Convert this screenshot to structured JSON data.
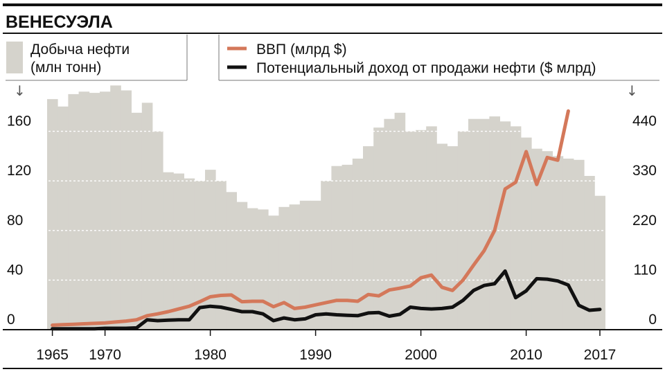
{
  "chart_data": {
    "type": "bar",
    "title": "ВЕНЕСУЭЛА",
    "x": [
      1965,
      1966,
      1967,
      1968,
      1969,
      1970,
      1971,
      1972,
      1973,
      1974,
      1975,
      1976,
      1977,
      1978,
      1979,
      1980,
      1981,
      1982,
      1983,
      1984,
      1985,
      1986,
      1987,
      1988,
      1989,
      1990,
      1991,
      1992,
      1993,
      1994,
      1995,
      1996,
      1997,
      1998,
      1999,
      2000,
      2001,
      2002,
      2003,
      2004,
      2005,
      2006,
      2007,
      2008,
      2009,
      2010,
      2011,
      2012,
      2013,
      2014,
      2015,
      2016,
      2017
    ],
    "x_ticks": [
      {
        "value": 1965,
        "label": "1965"
      },
      {
        "value": 1970,
        "label": "1970"
      },
      {
        "value": 1980,
        "label": "1980"
      },
      {
        "value": 1990,
        "label": "1990"
      },
      {
        "value": 2000,
        "label": "2000"
      },
      {
        "value": 2010,
        "label": "2010"
      },
      {
        "value": 2017,
        "label": "2017"
      }
    ],
    "left_axis": {
      "label": "Добыча нефти\n(млн тонн)",
      "ticks": [
        {
          "value": 0,
          "label": "0"
        },
        {
          "value": 40,
          "label": "40"
        },
        {
          "value": 80,
          "label": "80"
        },
        {
          "value": 120,
          "label": "120"
        },
        {
          "value": 160,
          "label": "160"
        }
      ],
      "ylim": [
        0,
        200
      ]
    },
    "right_axis": {
      "ticks": [
        {
          "value": 0,
          "label": "0"
        },
        {
          "value": 110,
          "label": "110"
        },
        {
          "value": 220,
          "label": "220"
        },
        {
          "value": 330,
          "label": "330"
        },
        {
          "value": 440,
          "label": "440"
        }
      ],
      "ylim": [
        0,
        550
      ]
    },
    "series": [
      {
        "name": "Добыча нефти (млн тонн)",
        "type": "bar",
        "axis": "left",
        "color": "#d5d3cc",
        "values": [
          186,
          180,
          190,
          192,
          191,
          192,
          197,
          193,
          175,
          183,
          160,
          127,
          126,
          122,
          120,
          129,
          120,
          111,
          103,
          98,
          97,
          92,
          99,
          101,
          104,
          104,
          120,
          132,
          133,
          138,
          148,
          163,
          170,
          175,
          160,
          161,
          164,
          150,
          148,
          160,
          170,
          170,
          172,
          168,
          164,
          155,
          146,
          144,
          140,
          138,
          137,
          124,
          108
        ]
      },
      {
        "name": "ВВП (млрд $)",
        "type": "line",
        "axis": "right",
        "color": "#d4785a",
        "values": [
          10,
          11,
          12,
          13,
          14,
          15,
          17,
          19,
          22,
          31,
          35,
          40,
          46,
          52,
          62,
          73,
          76,
          77,
          62,
          63,
          63,
          51,
          60,
          47,
          50,
          55,
          60,
          65,
          65,
          63,
          78,
          75,
          88,
          92,
          97,
          115,
          121,
          94,
          87,
          110,
          143,
          175,
          220,
          312,
          327,
          395,
          322,
          382,
          376,
          485,
          null,
          null,
          null
        ]
      },
      {
        "name": "Потенциальный доход от продажи нефти ($ млрд)",
        "type": "line",
        "axis": "right",
        "color": "#111111",
        "values": [
          2,
          2,
          2,
          2,
          2,
          3,
          3,
          3,
          4,
          22,
          20,
          21,
          22,
          22,
          49,
          52,
          50,
          45,
          40,
          40,
          35,
          20,
          26,
          22,
          24,
          33,
          35,
          33,
          32,
          31,
          37,
          38,
          30,
          34,
          50,
          47,
          46,
          47,
          50,
          65,
          87,
          98,
          102,
          130,
          71,
          86,
          113,
          112,
          108,
          99,
          54,
          43,
          45
        ]
      }
    ]
  }
}
